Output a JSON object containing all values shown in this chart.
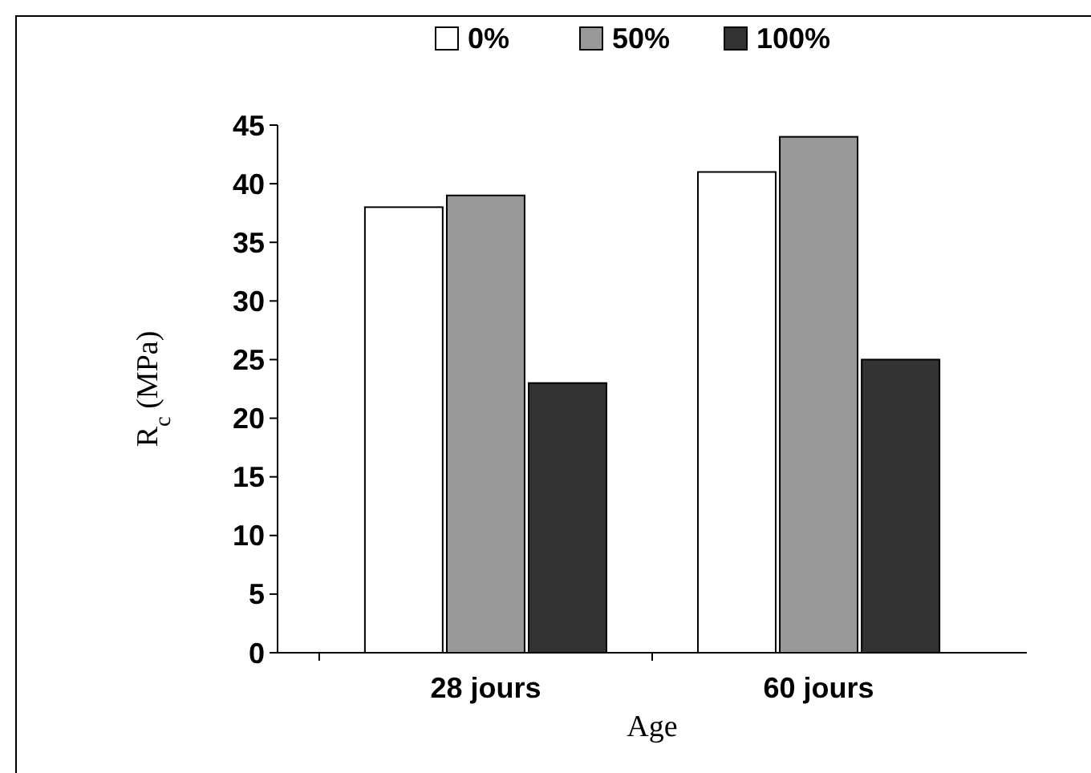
{
  "chart_data": {
    "type": "bar",
    "xlabel": "Age",
    "ylabel": "R$_{c}$ (MPa)",
    "categories": [
      "28 jours",
      "60 jours"
    ],
    "series": [
      {
        "name": "0%",
        "color": "#ffffff",
        "values": [
          38,
          41
        ]
      },
      {
        "name": "50%",
        "color": "#999999",
        "values": [
          39,
          44
        ]
      },
      {
        "name": "100%",
        "color": "#333333",
        "values": [
          23,
          25
        ]
      }
    ],
    "ylim": [
      0,
      45
    ],
    "yticks": [
      0,
      5,
      10,
      15,
      20,
      25,
      30,
      35,
      40,
      45
    ],
    "grid": false,
    "legend": "top"
  }
}
